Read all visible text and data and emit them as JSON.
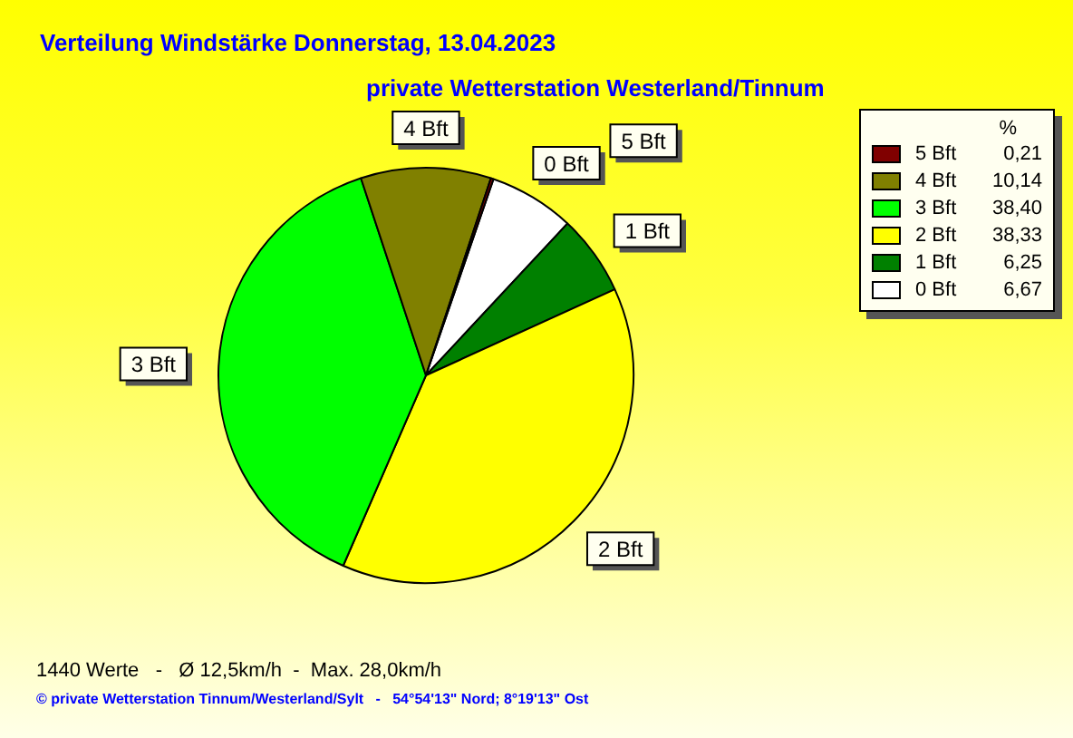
{
  "chart_data": {
    "type": "pie",
    "title": "Verteilung Windstärke  Donnerstag, 13.04.2023",
    "subtitle": "private Wetterstation Westerland/Tinnum",
    "categories": [
      "5 Bft",
      "4 Bft",
      "3 Bft",
      "2 Bft",
      "1 Bft",
      "0 Bft"
    ],
    "values": [
      0.21,
      10.14,
      38.4,
      38.33,
      6.25,
      6.67
    ],
    "colors": [
      "#800000",
      "#808000",
      "#00ff00",
      "#ffff00",
      "#008000",
      "#ffffff"
    ],
    "value_labels": [
      "0,21",
      "10,14",
      "38,40",
      "38,33",
      "6,25",
      "6,67"
    ],
    "legend": "top right",
    "legend_title": "%",
    "annotations": [
      "1440 Werte   -   Ø 12,5km/h  -  Max. 28,0km/h",
      "© private Wetterstation Tinnum/Westerland/Sylt   -   54°54'13\" Nord; 8°19'13\" Ost"
    ]
  }
}
